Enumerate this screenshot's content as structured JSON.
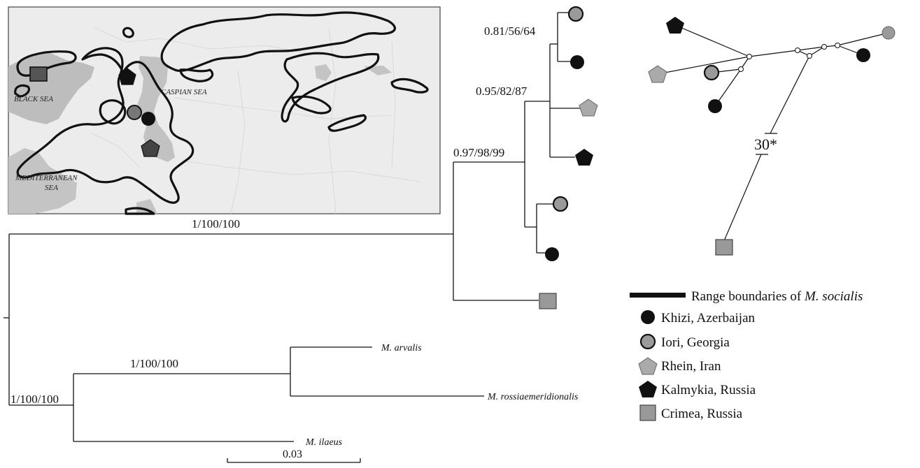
{
  "map": {
    "labels": {
      "black_sea": "BLACK SEA",
      "caspian_sea": "CASPIAN SEA",
      "mediterranean_1": "MEDITERRANEAN",
      "mediterranean_2": "SEA"
    }
  },
  "tree": {
    "supports": {
      "root_ingroup": "1/100/100",
      "ingroup_crown": "0.97/98/99",
      "clade_a": "0.95/82/87",
      "clade_b": "0.81/56/64",
      "outgroup": "1/100/100",
      "arvalis_rossiae": "1/100/100"
    },
    "taxa": {
      "arvalis": "M. arvalis",
      "rossiae": "M. rossiaemeridionalis",
      "ilaeus": "M. ilaeus"
    },
    "scale_bar": "0.03"
  },
  "network": {
    "mutation_label": "30*"
  },
  "legend": {
    "range_prefix": "Range boundaries of ",
    "range_species": "M. socialis",
    "items": [
      {
        "label": "Khizi, Azerbaijan",
        "color": "#111111",
        "shape": "circle"
      },
      {
        "label": "Iori, Georgia",
        "color": "#9a9a9a",
        "shape": "circle-outlined"
      },
      {
        "label": "Rhein, Iran",
        "color": "#a9a9a9",
        "shape": "pentagon"
      },
      {
        "label": "Kalmykia, Russia",
        "color": "#111111",
        "shape": "pentagon"
      },
      {
        "label": "Crimea, Russia",
        "color": "#999999",
        "shape": "square"
      }
    ]
  }
}
